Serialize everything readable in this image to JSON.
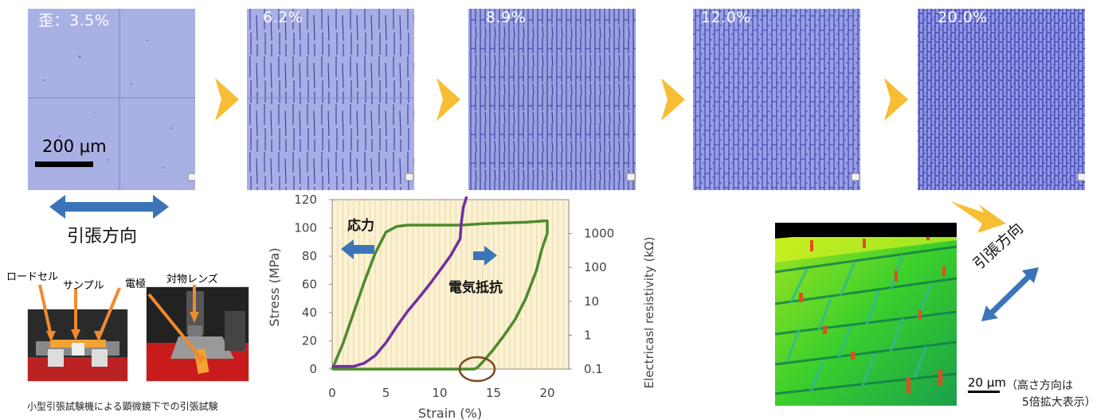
{
  "panels": [
    {
      "strain_label": "歪：3.5%"
    },
    {
      "strain_label": "6.2%"
    },
    {
      "strain_label": "8.9%"
    },
    {
      "strain_label": "12.0%"
    },
    {
      "strain_label": "20.0%"
    }
  ],
  "scale_bar_label": "200 μm",
  "tension_direction_label": "引張方向",
  "device_callouts": {
    "load_cell": "ロードセル",
    "sample": "サンプル",
    "electrode": "電極",
    "objective": "対物レンズ"
  },
  "device_caption": "小型引張試験機による顕微鏡下での引張試験",
  "chart_data": {
    "type": "line",
    "xlabel": "Strain (%)",
    "ylabel": "Stress (MPa)",
    "y2label": "Electricasl resistivity  (kΩ)",
    "xlim": [
      0,
      22
    ],
    "ylim": [
      0,
      120
    ],
    "y2_scale": "log",
    "y2lim": [
      0.1,
      10000
    ],
    "x_ticks": [
      0,
      5,
      10,
      15,
      20
    ],
    "y_ticks": [
      0,
      20,
      40,
      60,
      80,
      100,
      120
    ],
    "y2_ticks": [
      "0.1",
      "1",
      "10",
      "100",
      "1000"
    ],
    "y2_tick_values": [
      0.1,
      1,
      10,
      100,
      1000
    ],
    "annotations": {
      "stress": "応力",
      "resistance": "電気抵抗"
    },
    "series": [
      {
        "name": "応力",
        "axis": "left",
        "color": "#4f8a2e",
        "x": [
          0,
          1,
          2,
          3,
          4,
          5,
          6,
          7,
          8,
          10,
          12,
          14,
          16,
          18,
          19.8,
          20,
          20,
          19.5,
          19,
          18,
          17,
          16,
          15,
          14,
          13.5,
          13.2,
          12,
          10,
          5,
          2,
          0.5,
          0
        ],
        "y": [
          0,
          18,
          40,
          62,
          82,
          97,
          101,
          102,
          102,
          102,
          102,
          103,
          103.5,
          104,
          105,
          105,
          96,
          85,
          70,
          50,
          35,
          24,
          14,
          5,
          1,
          0,
          0,
          0,
          0,
          0,
          0,
          0
        ]
      },
      {
        "name": "電気抵抗",
        "axis": "right",
        "color": "#7030a0",
        "x": [
          0,
          1,
          2,
          3,
          4,
          5,
          6,
          7,
          8,
          9,
          10,
          11,
          11.5,
          11.9,
          12,
          12.2,
          12.5
        ],
        "y": [
          0.12,
          0.12,
          0.12,
          0.15,
          0.25,
          0.6,
          1.8,
          5,
          12,
          30,
          80,
          220,
          420,
          700,
          2000,
          6000,
          30000
        ]
      }
    ]
  },
  "colors": {
    "arrow_yellow": "#f7bd33",
    "arrow_blue": "#3b74b9",
    "chart_bg": "#fbf1d3",
    "stress_line": "#4f8a2e",
    "resistance_line": "#7030a0",
    "circle": "#7b4a1e"
  },
  "map3d": {
    "scale_label": "20 μm",
    "note_line1": "（高さ方向は",
    "note_line2": "5倍拡大表示）",
    "direction_label": "引張方向"
  }
}
